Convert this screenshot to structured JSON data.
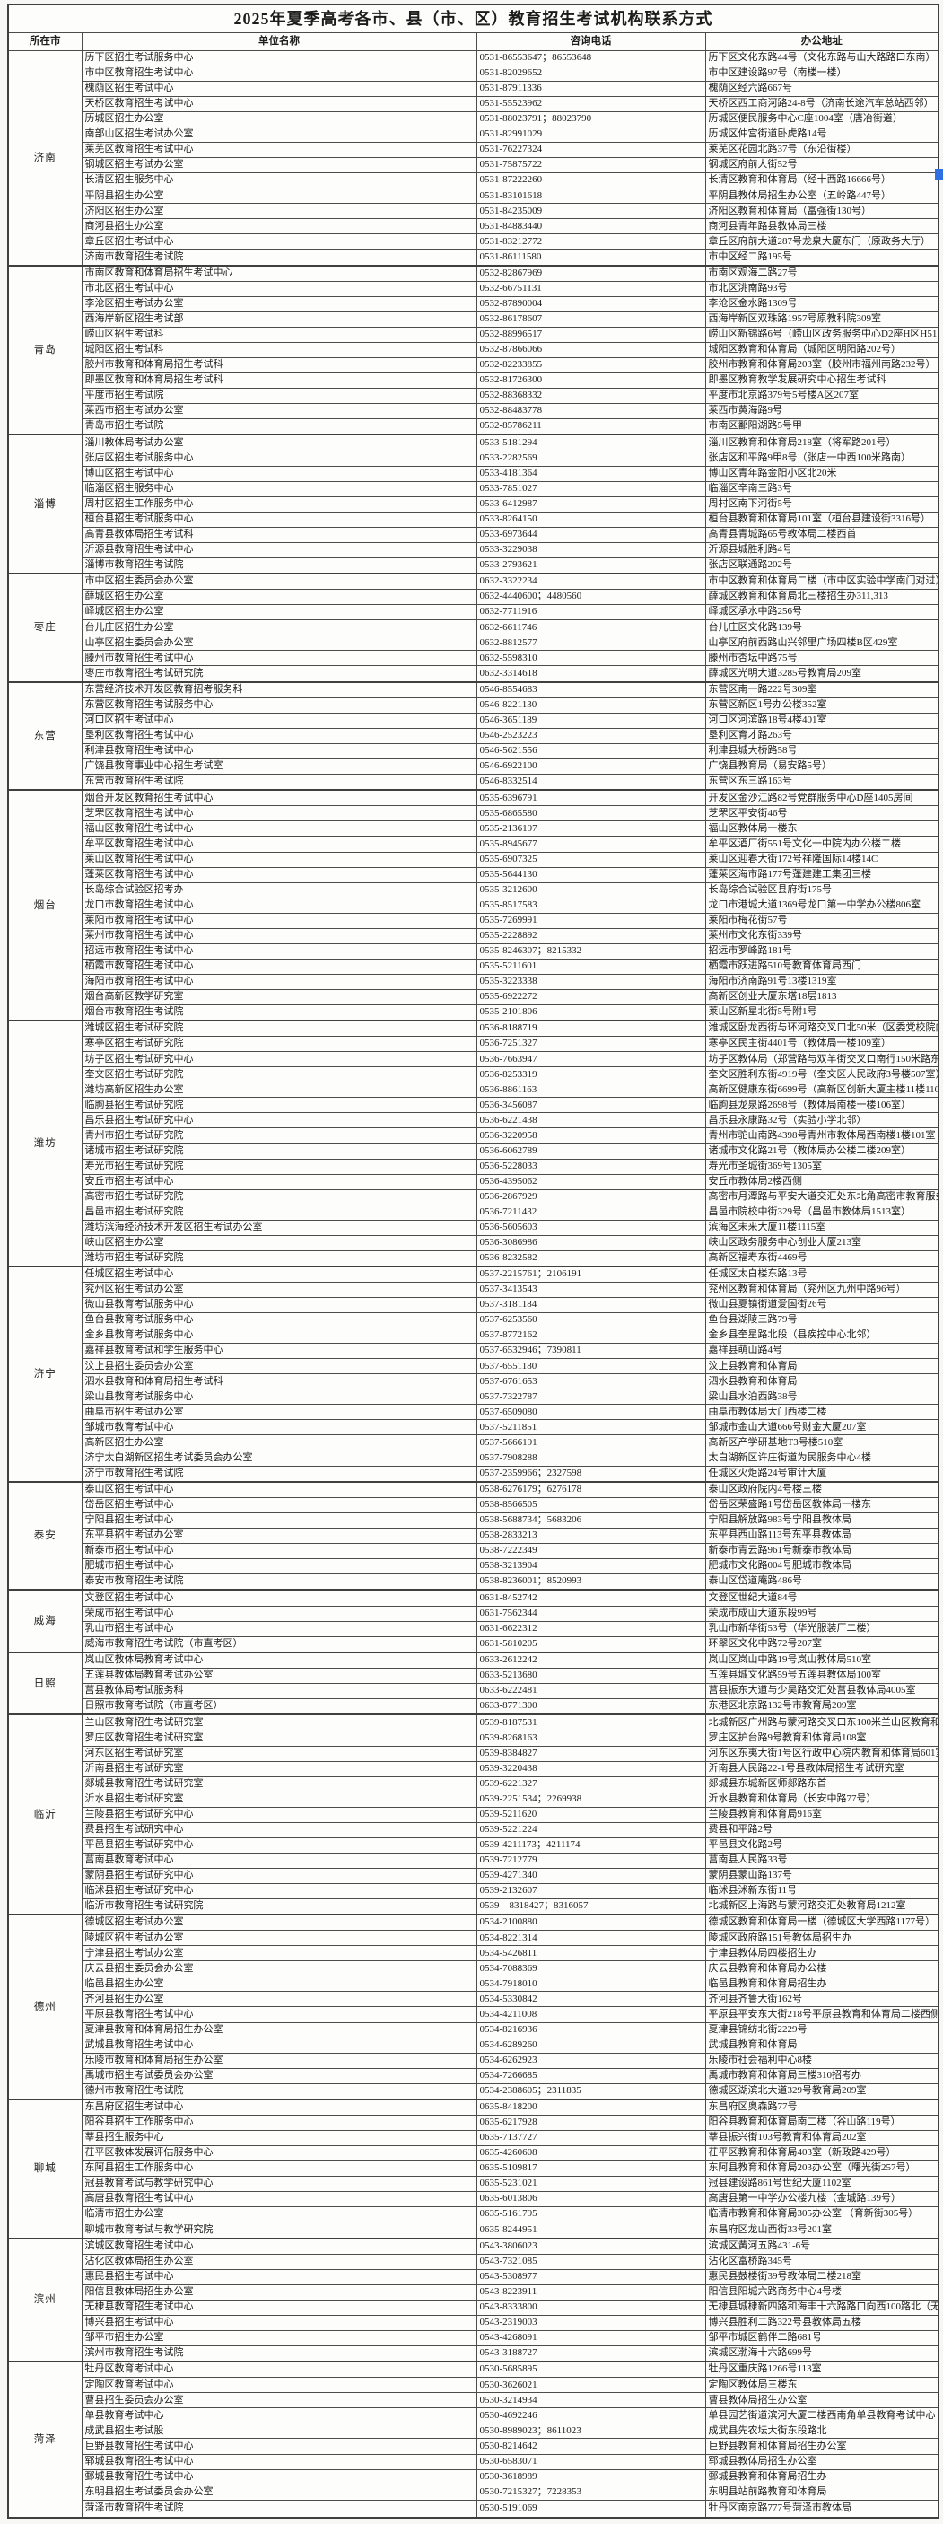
{
  "title": "2025年夏季高考各市、县（市、区）教育招生考试机构联系方式",
  "columns": [
    "所在市",
    "单位名称",
    "咨询电话",
    "办公地址"
  ],
  "colors": {
    "border": "#4c4c4c",
    "selection_artifact": "#2f6fe4"
  },
  "cities": [
    {
      "name": "济南",
      "rows": [
        [
          "历下区招生考试服务中心",
          "0531-86553647；86553648",
          "历下区文化东路44号（文化东路与山大路路口东南）"
        ],
        [
          "市中区教育招生考试中心",
          "0531-82029652",
          "市中区建设路97号（南楼一楼）"
        ],
        [
          "槐荫区招生考试中心",
          "0531-87911336",
          "槐荫区经六路667号"
        ],
        [
          "天桥区教育招生考试中心",
          "0531-55523962",
          "天桥区西工商河路24-8号（济南长途汽车总站西邻）"
        ],
        [
          "历城区招生办公室",
          "0531-88023791；88023790",
          "历城区便民服务中心C座1004室（唐冶街道）"
        ],
        [
          "南部山区招生考试办公室",
          "0531-82991029",
          "历城区仲宫街道卧虎路14号"
        ],
        [
          "莱芜区教育招生考试中心",
          "0531-76227324",
          "莱芜区花园北路37号（东沿街楼）"
        ],
        [
          "钢城区招生考试办公室",
          "0531-75875722",
          "钢城区府前大街52号"
        ],
        [
          "长清区招生服务中心",
          "0531-87222260",
          "长清区教育和体育局（经十西路16666号）"
        ],
        [
          "平阴县招生办公室",
          "0531-83101618",
          "平阴县教体局招生办公室（五岭路447号）"
        ],
        [
          "济阳区招生办公室",
          "0531-84235009",
          "济阳区教育和体育局（富强街130号）"
        ],
        [
          "商河县招生办公室",
          "0531-84883440",
          "商河县青年路县教体局三楼"
        ],
        [
          "章丘区招生考试中心",
          "0531-83212772",
          "章丘区府前大道287号龙泉大厦东门（原政务大厅）"
        ],
        [
          "济南市教育招生考试院",
          "0531-86111580",
          "市中区经二路195号"
        ]
      ]
    },
    {
      "name": "青岛",
      "rows": [
        [
          "市南区教育和体育局招生考试中心",
          "0532-82867969",
          "市南区观海二路27号"
        ],
        [
          "市北区招生考试中心",
          "0532-66751131",
          "市北区洮南路93号"
        ],
        [
          "李沧区招生考试办公室",
          "0532-87890004",
          "李沧区金水路1309号"
        ],
        [
          "西海岸新区招生考试部",
          "0532-86178607",
          "西海岸新区双珠路1957号原教科院309室"
        ],
        [
          "崂山区招生考试科",
          "0532-88996517",
          "崂山区新锦路6号（崂山区政务服务中心D2座H区H515室）"
        ],
        [
          "城阳区招生考试科",
          "0532-87866066",
          "城阳区教育和体育局（城阳区明阳路202号）"
        ],
        [
          "胶州市教育和体育局招生考试科",
          "0532-82233855",
          "胶州市教育和体育局203室（胶州市福州南路232号）"
        ],
        [
          "即墨区教育和体育局招生考试科",
          "0532-81726300",
          "即墨区教育教学发展研究中心招生考试科"
        ],
        [
          "平度市招生考试院",
          "0532-88368332",
          "平度市北京路379号5号楼A区207室"
        ],
        [
          "莱西市招生考试办公室",
          "0532-88483778",
          "莱西市黄海路9号"
        ],
        [
          "青岛市招生考试院",
          "0532-85786211",
          "市南区鄱阳湖路5号甲"
        ]
      ]
    },
    {
      "name": "淄博",
      "rows": [
        [
          "淄川教体局考试办公室",
          "0533-5181294",
          "淄川区教育和体育局218室（将军路201号）"
        ],
        [
          "张店区招生考试服务中心",
          "0533-2282569",
          "张店区和平路9甲8号（张店一中西100米路南）"
        ],
        [
          "博山区招生考试中心",
          "0533-4181364",
          "博山区青年路金阳小区北20米"
        ],
        [
          "临淄区招生服务中心",
          "0533-7851027",
          "临淄区辛南三路3号"
        ],
        [
          "周村区招生工作服务中心",
          "0533-6412987",
          "周村区南下河街5号"
        ],
        [
          "桓台县招生考试服务中心",
          "0533-8264150",
          "桓台县教育和体育局101室（桓台县建设街3316号）"
        ],
        [
          "高青县教体局招生考试科",
          "0533-6973644",
          "高青县青城路65号教体局二楼西首"
        ],
        [
          "沂源县教育招生考试中心",
          "0533-3229038",
          "沂源县城胜利路4号"
        ],
        [
          "淄博市教育招生考试院",
          "0533-2793621",
          "张店区联通路202号"
        ]
      ]
    },
    {
      "name": "枣庄",
      "rows": [
        [
          "市中区招生委员会办公室",
          "0632-3322234",
          "市中区教育和体育局二楼（市中区实验中学南门对过）"
        ],
        [
          "薛城区招生办公室",
          "0632-4440600；4480560",
          "薛城区教育和体育局北三楼招生办311,313"
        ],
        [
          "峄城区招生办公室",
          "0632-7711916",
          "峄城区承水中路256号"
        ],
        [
          "台儿庄区招生办公室",
          "0632-6611746",
          "台儿庄区文化路139号"
        ],
        [
          "山亭区招生委员会办公室",
          "0632-8812577",
          "山亭区府前西路山兴邻里广场四楼B区429室"
        ],
        [
          "滕州市教育招生考试中心",
          "0632-5598310",
          "滕州市杏坛中路75号"
        ],
        [
          "枣庄市教育招生考试研究院",
          "0632-3314618",
          "薛城区光明大道3285号教育局209室"
        ]
      ]
    },
    {
      "name": "东营",
      "rows": [
        [
          "东营经济技术开发区教育招考服务科",
          "0546-8554683",
          "东营区南一路222号309室"
        ],
        [
          "东营区教育招生考试服务中心",
          "0546-8221130",
          "东营区新区1号办公楼352室"
        ],
        [
          "河口区招生考试中心",
          "0546-3651189",
          "河口区河滨路18号4楼401室"
        ],
        [
          "垦利区教育招生考试中心",
          "0546-2523223",
          "垦利区育才路263号"
        ],
        [
          "利津县教育招生考试中心",
          "0546-5621556",
          "利津县城大桥路58号"
        ],
        [
          "广饶县教育事业中心招生考试室",
          "0546-6922100",
          "广饶县教育局（易安路5号）"
        ],
        [
          "东营市教育招生考试院",
          "0546-8332514",
          "东营区东三路163号"
        ]
      ]
    },
    {
      "name": "烟台",
      "rows": [
        [
          "烟台开发区教育招生考试中心",
          "0535-6396791",
          "开发区金沙江路82号党群服务中心D座1405房间"
        ],
        [
          "芝罘区教育招生考试中心",
          "0535-6865580",
          "芝罘区平安街46号"
        ],
        [
          "福山区教育招生考试中心",
          "0535-2136197",
          "福山区教体局一楼东"
        ],
        [
          "牟平区教育招生考试中心",
          "0535-8945677",
          "牟平区酒厂街551号文化一中院内办公楼二楼"
        ],
        [
          "莱山区教育招生考试中心",
          "0535-6907325",
          "莱山区迎春大街172号祥隆国际14楼14C"
        ],
        [
          "蓬莱区教育招生考试中心",
          "0535-5644130",
          "蓬莱区海市路177号蓬建建工集团三楼"
        ],
        [
          "长岛综合试验区招考办",
          "0535-3212600",
          "长岛综合试验区县府街175号"
        ],
        [
          "龙口市教育招生考试中心",
          "0535-8517583",
          "龙口市港城大道1369号龙口第一中学办公楼806室"
        ],
        [
          "莱阳市教育招生考试中心",
          "0535-7269991",
          "莱阳市梅花街57号"
        ],
        [
          "莱州市教育招生考试中心",
          "0535-2228892",
          "莱州市文化东街339号"
        ],
        [
          "招远市教育招生考试中心",
          "0535-8246307；8215332",
          "招远市罗峰路181号"
        ],
        [
          "栖霞市教育招生考试中心",
          "0535-5211601",
          "栖霞市跃进路510号教育体育局西门"
        ],
        [
          "海阳市教育招生考试中心",
          "0535-3223338",
          "海阳市济南路91号13楼1319室"
        ],
        [
          "烟台高新区教学研究室",
          "0535-6922272",
          "高新区创业大厦东塔18层1813"
        ],
        [
          "烟台市教育招生考试院",
          "0535-2101806",
          "莱山区新星北街5号附1号"
        ]
      ]
    },
    {
      "name": "潍坊",
      "rows": [
        [
          "潍城区招生考试研究院",
          "0536-8188719",
          "潍城区卧龙西街与环河路交叉口北50米（区委党校院内）"
        ],
        [
          "寒亭区招生考试研究院",
          "0536-7251327",
          "寒亭区民主街4401号（教体局一楼109室）"
        ],
        [
          "坊子区招生考试研究中心",
          "0536-7663947",
          "坊子区教体局（郑营路与双羊街交叉口南行150米路东）"
        ],
        [
          "奎文区招生考试研究院",
          "0536-8253319",
          "奎文区胜利东街4919号（奎文区人民政府3号楼507室）"
        ],
        [
          "潍坊高新区招生办公室",
          "0536-8861163",
          "高新区健康东街6699号（高新区创新大厦主楼11楼1103室）"
        ],
        [
          "临朐县招生考试研究院",
          "0536-3456087",
          "临朐县龙泉路2698号（教体局南楼一楼106室）"
        ],
        [
          "昌乐县招生考试研究中心",
          "0536-6221438",
          "昌乐县永康路32号（实验小学北邻）"
        ],
        [
          "青州市招生考试研究院",
          "0536-3220958",
          "青州市驼山南路4398号青州市教体局西南楼1楼101室"
        ],
        [
          "诸城市招生考试研究院",
          "0536-6062789",
          "诸城市文化路21号（教体局办公楼二楼209室）"
        ],
        [
          "寿光市招生考试研究院",
          "0536-5228033",
          "寿光市圣城街369号1305室"
        ],
        [
          "安丘市招生考试中心",
          "0536-4395062",
          "安丘市教体局2楼西侧"
        ],
        [
          "高密市招生考试研究院",
          "0536-2867929",
          "高密市月潭路与平安大道交汇处东北角高密市教育服务中心2楼212室"
        ],
        [
          "昌邑市招生考试研究院",
          "0536-7211432",
          "昌邑市院校中街329号（昌邑市教体局1513室）"
        ],
        [
          "潍坊滨海经济技术开发区招生考试办公室",
          "0536-5605603",
          "滨海区未来大厦11楼1115室"
        ],
        [
          "峡山区招生办公室",
          "0536-3086986",
          "峡山区政务服务中心创业大厦213室"
        ],
        [
          "潍坊市招生考试研究院",
          "0536-8232582",
          "高新区福寿东街4469号"
        ]
      ]
    },
    {
      "name": "济宁",
      "rows": [
        [
          "任城区招生考试中心",
          "0537-2215761；2106191",
          "任城区太白楼东路13号"
        ],
        [
          "兖州区招生考试办公室",
          "0537-3413543",
          "兖州区教育和体育局（兖州区九州中路96号）"
        ],
        [
          "微山县教育考试服务中心",
          "0537-3181184",
          "微山县夏镇街道爱国街26号"
        ],
        [
          "鱼台县教育考试服务中心",
          "0537-6253560",
          "鱼台县湖陵三路79号"
        ],
        [
          "金乡县教育考试服务中心",
          "0537-8772162",
          "金乡县奎星路北段（县疾控中心北邻）"
        ],
        [
          "嘉祥县教育考试和学生服务中心",
          "0537-6532946；7390811",
          "嘉祥县萌山路4号"
        ],
        [
          "汶上县招生委员会办公室",
          "0537-6551180",
          "汶上县教育和体育局"
        ],
        [
          "泗水县教育和体育局招生考试科",
          "0537-6761653",
          "泗水县教育和体育局"
        ],
        [
          "梁山县教育考试服务中心",
          "0537-7322787",
          "梁山县水泊西路38号"
        ],
        [
          "曲阜市招生考试办公室",
          "0537-6509080",
          "曲阜市教体局大门西楼二楼"
        ],
        [
          "邹城市教育考试中心",
          "0537-5211851",
          "邹城市金山大道666号财金大厦207室"
        ],
        [
          "高新区招生办公室",
          "0537-5666191",
          "高新区产学研基地T3号楼510室"
        ],
        [
          "济宁太白湖新区招生考试委员会办公室",
          "0537-7908288",
          "太白湖新区许庄街道为民服务中心4楼"
        ],
        [
          "济宁市教育招生考试院",
          "0537-2359966；2327598",
          "任城区火炬路24号审计大厦"
        ]
      ]
    },
    {
      "name": "泰安",
      "rows": [
        [
          "泰山区招生考试中心",
          "0538-6276179；6276178",
          "泰山区政府院内4号楼三楼"
        ],
        [
          "岱岳区招生考试中心",
          "0538-8566505",
          "岱岳区荣盛路1号岱岳区教体局一楼东"
        ],
        [
          "宁阳县招生考试中心",
          "0538-5688734；5683206",
          "宁阳县解放路983号宁阳县教体局"
        ],
        [
          "东平县招生考试办公室",
          "0538-2833213",
          "东平县西山路113号东平县教体局"
        ],
        [
          "新泰市招生考试中心",
          "0538-7222349",
          "新泰市青云路961号新泰市教体局"
        ],
        [
          "肥城市招生考试中心",
          "0538-3213904",
          "肥城市文化路004号肥城市教体局"
        ],
        [
          "泰安市教育招生考试院",
          "0538-8236001；8520993",
          "泰山区岱道庵路486号"
        ]
      ]
    },
    {
      "name": "威海",
      "rows": [
        [
          "文登区招生考试中心",
          "0631-8452742",
          "文登区世纪大道84号"
        ],
        [
          "荣成市招生考试中心",
          "0631-7562344",
          "荣成市成山大道东段99号"
        ],
        [
          "乳山市招生考试中心",
          "0631-6622312",
          "乳山市新华街53号（华光服装厂二楼）"
        ],
        [
          "威海市教育招生考试院（市直考区）",
          "0631-5810205",
          "环翠区文化中路72号207室"
        ]
      ]
    },
    {
      "name": "日照",
      "rows": [
        [
          "岚山区教体局教育考试中心",
          "0633-2612242",
          "岚山区岚山中路19号岚山教体局510室"
        ],
        [
          "五莲县教体局教育考试办公室",
          "0633-5213680",
          "五莲县城文化路59号五莲县教体局100室"
        ],
        [
          "莒县教体局考试服务科",
          "0633-6222481",
          "莒县振东大道与少昊路交汇处莒县教体局4005室"
        ],
        [
          "日照市教育考试院（市直考区）",
          "0633-8771300",
          "东港区北京路132号市教育局209室"
        ]
      ]
    },
    {
      "name": "临沂",
      "rows": [
        [
          "兰山区教育招生考试研究室",
          "0539-8187531",
          "北城新区广州路与蒙河路交叉口东100米兰山区教育和体育局"
        ],
        [
          "罗庄区教育招生考试研究室",
          "0539-8268163",
          "罗庄区护台路9号教育和体育局108室"
        ],
        [
          "河东区招生考试研究室",
          "0539-8384827",
          "河东区东夷大街1号区行政中心院内教育和体育局601室"
        ],
        [
          "沂南县招生考试研究室",
          "0539-3220438",
          "沂南县人民路22-1号县教体局招生考试研究室"
        ],
        [
          "郯城县教育招生考试研究室",
          "0539-6221327",
          "郯城县东城新区师郯路东首"
        ],
        [
          "沂水县招生考试研究室",
          "0539-2251534；2269938",
          "沂水县教育和体育局（长安中路77号）"
        ],
        [
          "兰陵县招生考试研究中心",
          "0539-5211620",
          "兰陵县教育和体育局916室"
        ],
        [
          "费县招生考试研究中心",
          "0539-5221224",
          "费县和平路2号"
        ],
        [
          "平邑县招生考试研究中心",
          "0539-4211173；4211174",
          "平邑县文化路2号"
        ],
        [
          "莒南县教育考试中心",
          "0539-7212779",
          "莒南县人民路33号"
        ],
        [
          "蒙阴县招生考试研究中心",
          "0539-4271340",
          "蒙阴县蒙山路137号"
        ],
        [
          "临沭县招生考试研究中心",
          "0539-2132607",
          "临沭县沭新东街11号"
        ],
        [
          "临沂市教育招生考试研究院",
          "0539—8318427；8316057",
          "北城新区上海路与蒙河路交汇处教育局1212室"
        ]
      ]
    },
    {
      "name": "德州",
      "rows": [
        [
          "德城区招生考试办公室",
          "0534-2100880",
          "德城区教育和体育局一楼（德城区大学西路1177号）"
        ],
        [
          "陵城区招生考试办公室",
          "0534-8221314",
          "陵城区政府路151号教体局招生办"
        ],
        [
          "宁津县招生考试办公室",
          "0534-5426811",
          "宁津县教体局四楼招生办"
        ],
        [
          "庆云县招生委员会办公室",
          "0534-7088369",
          "庆云县教育和体育局办公楼"
        ],
        [
          "临邑县招生办公室",
          "0534-7918010",
          "临邑县教育和体育局招生办"
        ],
        [
          "齐河县招生办公室",
          "0534-5330842",
          "齐河县齐鲁大街162号"
        ],
        [
          "平原县教育招生考试中心",
          "0534-4211008",
          "平原县平安东大街218号平原县教育和体育局二楼西侧211室"
        ],
        [
          "夏津县教育和体育局招生办公室",
          "0534-8216936",
          "夏津县锦纺北街2229号"
        ],
        [
          "武城县教育招生考试中心",
          "0534-6289260",
          "武城县教育和体育局"
        ],
        [
          "乐陵市教育和体育局招生办公室",
          "0534-6262923",
          "乐陵市社会福利中心8楼"
        ],
        [
          "禹城市招生考试委员会办公室",
          "0534-7266685",
          "禹城市教育和体育局三楼310招考办"
        ],
        [
          "德州市教育招生考试院",
          "0534-2388605；2311835",
          "德城区湖滨北大道329号教育局209室"
        ]
      ]
    },
    {
      "name": "聊城",
      "rows": [
        [
          "东昌府区招生考试中心",
          "0635-8418200",
          "东昌府区奥森路77号"
        ],
        [
          "阳谷县招生工作服务中心",
          "0635-6217928",
          "阳谷县教育和体育局南二楼（谷山路119号）"
        ],
        [
          "莘县招生服务中心",
          "0635-7137727",
          "莘县振兴街103号教育和体育局202室"
        ],
        [
          "茌平区教体发展评估服务中心",
          "0635-4260608",
          "茌平区教育和体育局403室（新政路429号）"
        ],
        [
          "东阿县招生工作服务中心",
          "0635-5109817",
          "东阿县教育和体育局203办公室（曙光街257号）"
        ],
        [
          "冠县教育考试与教学研究中心",
          "0635-5231021",
          "冠县建设路861号世纪大厦1102室"
        ],
        [
          "高唐县教育招生考试中心",
          "0635-6013806",
          "高唐县第一中学办公楼九楼（金城路139号）"
        ],
        [
          "临清市招生办公室",
          "0635-5161795",
          "临清市教育和体育局305办公室 （育新街305号）"
        ],
        [
          "聊城市教育考试与教学研究院",
          "0635-8244951",
          "东昌府区龙山西街33号201室"
        ]
      ]
    },
    {
      "name": "滨州",
      "rows": [
        [
          "滨城区教育招生考试中心",
          "0543-3806023",
          "滨城区黄河五路431-6号"
        ],
        [
          "沾化区教体局招生办公室",
          "0543-7321085",
          "沾化区富桥路345号"
        ],
        [
          "惠民县招生考试中心",
          "0543-5308977",
          "惠民县鼓楼街39号教体局二楼218室"
        ],
        [
          "阳信县教体局招生办公室",
          "0543-8223911",
          "阳信县阳城六路商务中心4号楼"
        ],
        [
          "无棣县教育招生考试中心",
          "0543-8333800",
          "无棣县城棣新四路和海丰十六路路口向西100路北（无棣县教育和体育局302室）"
        ],
        [
          "博兴县招生考试中心",
          "0543-2319003",
          "博兴县胜利二路322号县教体局五楼"
        ],
        [
          "邹平市招生办公室",
          "0543-4268091",
          "邹平市城区鹤伴二路681号"
        ],
        [
          "滨州市教育招生考试院",
          "0543-3188727",
          "滨城区渤海十六路699号"
        ]
      ]
    },
    {
      "name": "菏泽",
      "rows": [
        [
          "牡丹区教育考试中心",
          "0530-5685895",
          "牡丹区重庆路1266号113室"
        ],
        [
          "定陶区教育考试中心",
          "0530-3626021",
          "定陶区教体局三楼东"
        ],
        [
          "曹县招生委员会办公室",
          "0530-3214934",
          "曹县教体局招生办公室"
        ],
        [
          "单县教育考试中心",
          "0530-4692246",
          "单县园艺街道滨河大厦二楼西南角单县教育考试中心"
        ],
        [
          "成武县招生考试股",
          "0530-8989023；8611023",
          "成武县先农坛大街东段路北"
        ],
        [
          "巨野县教育招生考试中心",
          "0530-8214642",
          "巨野县教育和体育局招生办公室"
        ],
        [
          "郓城县教育招生考试中心",
          "0530-6583071",
          "郓城县教体局招生办公室"
        ],
        [
          "鄄城县教育招生考试中心",
          "0530-3618989",
          "鄄城县教育和体育局招生办"
        ],
        [
          "东明县招生考试委员会办公室",
          "0530-7215327；7228353",
          "东明县站前路教育和体育局"
        ],
        [
          "菏泽市教育招生考试院",
          "0530-5191069",
          "牡丹区南京路777号菏泽市教体局"
        ]
      ]
    }
  ]
}
